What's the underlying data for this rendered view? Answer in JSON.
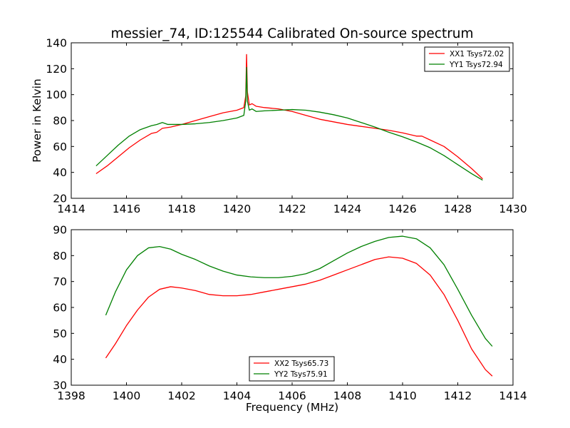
{
  "figure": {
    "title": "messier_74, ID:125544 Calibrated On-source spectrum",
    "background": "#ffffff"
  },
  "chart_data": [
    {
      "type": "line",
      "title": "messier_74, ID:125544 Calibrated On-source spectrum",
      "xlabel": "",
      "ylabel": "Power in Kelvin",
      "xlim": [
        1414,
        1430
      ],
      "ylim": [
        20,
        140
      ],
      "xticks": [
        1414,
        1416,
        1418,
        1420,
        1422,
        1424,
        1426,
        1428,
        1430
      ],
      "yticks": [
        20,
        40,
        60,
        80,
        100,
        120,
        140
      ],
      "grid": false,
      "legend_position": "top-right",
      "series": [
        {
          "name": "XX1 Tsys72.02",
          "color": "#ff0000",
          "x": [
            1414.9,
            1415.3,
            1415.7,
            1416.1,
            1416.5,
            1416.9,
            1417.1,
            1417.3,
            1417.6,
            1418.0,
            1418.5,
            1419.0,
            1419.5,
            1420.0,
            1420.25,
            1420.32,
            1420.35,
            1420.38,
            1420.45,
            1420.55,
            1420.7,
            1421.0,
            1421.5,
            1422.0,
            1422.5,
            1423.0,
            1423.5,
            1424.0,
            1424.5,
            1425.0,
            1425.5,
            1426.0,
            1426.5,
            1426.7,
            1427.0,
            1427.5,
            1428.0,
            1428.5,
            1428.9
          ],
          "values": [
            39,
            45,
            52,
            59,
            65,
            70,
            71,
            74,
            75,
            77,
            80,
            83,
            86,
            88,
            90,
            99,
            131,
            102,
            92,
            93,
            91,
            90,
            89,
            87,
            84,
            81,
            79,
            77,
            75.5,
            74,
            72.5,
            70.5,
            68,
            68,
            65,
            60,
            52,
            43,
            35
          ]
        },
        {
          "name": "YY1 Tsys72.94",
          "color": "#008000",
          "x": [
            1414.9,
            1415.3,
            1415.7,
            1416.1,
            1416.5,
            1416.9,
            1417.1,
            1417.3,
            1417.5,
            1418.0,
            1418.5,
            1419.0,
            1419.5,
            1420.0,
            1420.25,
            1420.32,
            1420.35,
            1420.38,
            1420.45,
            1420.55,
            1420.7,
            1421.0,
            1421.5,
            1422.0,
            1422.5,
            1423.0,
            1423.5,
            1424.0,
            1424.5,
            1425.0,
            1425.5,
            1426.0,
            1426.5,
            1427.0,
            1427.5,
            1428.0,
            1428.5,
            1428.9
          ],
          "values": [
            45,
            53,
            61,
            68,
            73,
            76,
            77,
            78.5,
            77,
            77,
            77.5,
            78.5,
            80,
            82,
            84,
            95,
            121,
            95,
            88,
            89,
            87,
            87.5,
            88,
            88.5,
            88,
            86.5,
            84.5,
            82,
            78.5,
            75,
            71,
            67.5,
            63.5,
            59,
            53,
            46,
            39,
            34
          ]
        }
      ]
    },
    {
      "type": "line",
      "title": "",
      "xlabel": "Frequency (MHz)",
      "ylabel": "",
      "xlim": [
        1398,
        1414
      ],
      "ylim": [
        30,
        90
      ],
      "xticks": [
        1398,
        1400,
        1402,
        1404,
        1406,
        1408,
        1410,
        1412,
        1414
      ],
      "yticks": [
        30,
        40,
        50,
        60,
        70,
        80,
        90
      ],
      "grid": false,
      "legend_position": "bottom-center",
      "series": [
        {
          "name": "XX2 Tsys65.73",
          "color": "#ff0000",
          "x": [
            1399.25,
            1399.6,
            1400.0,
            1400.4,
            1400.8,
            1401.2,
            1401.6,
            1402.0,
            1402.5,
            1403.0,
            1403.5,
            1404.0,
            1404.5,
            1405.0,
            1405.5,
            1406.0,
            1406.5,
            1407.0,
            1407.5,
            1408.0,
            1408.5,
            1409.0,
            1409.5,
            1410.0,
            1410.5,
            1411.0,
            1411.5,
            1412.0,
            1412.5,
            1413.0,
            1413.25
          ],
          "values": [
            40.5,
            46,
            53,
            59,
            64,
            67,
            68,
            67.5,
            66.5,
            65,
            64.5,
            64.5,
            65,
            66,
            67,
            68,
            69,
            70.5,
            72.5,
            74.5,
            76.5,
            78.5,
            79.5,
            79,
            77,
            72.5,
            65,
            55,
            44,
            36,
            33.5
          ]
        },
        {
          "name": "YY2 Tsys75.91",
          "color": "#008000",
          "x": [
            1399.25,
            1399.6,
            1400.0,
            1400.4,
            1400.8,
            1401.2,
            1401.6,
            1402.0,
            1402.5,
            1403.0,
            1403.5,
            1404.0,
            1404.5,
            1405.0,
            1405.5,
            1406.0,
            1406.5,
            1407.0,
            1407.5,
            1408.0,
            1408.5,
            1409.0,
            1409.5,
            1410.0,
            1410.5,
            1411.0,
            1411.5,
            1412.0,
            1412.5,
            1413.0,
            1413.25
          ],
          "values": [
            57,
            66,
            74.5,
            80,
            83,
            83.5,
            82.5,
            80.5,
            78.5,
            76,
            74,
            72.5,
            71.8,
            71.5,
            71.5,
            72,
            73,
            75,
            78,
            81,
            83.5,
            85.5,
            87,
            87.5,
            86.5,
            83,
            76.5,
            67,
            57,
            48,
            45
          ]
        }
      ]
    }
  ]
}
